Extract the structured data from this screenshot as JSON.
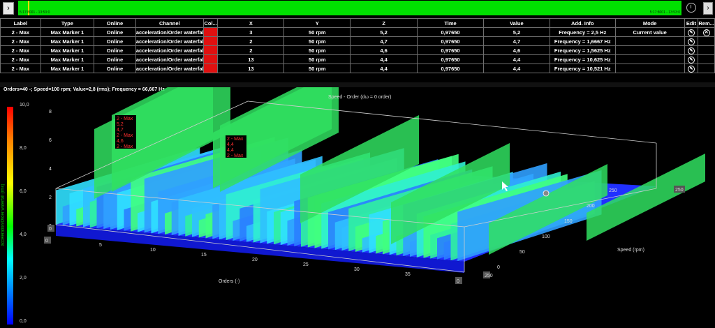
{
  "toolbar": {
    "play_glyph": "›",
    "clock_icon": "clock-icon",
    "right_glyph": "›",
    "timeline_start": "5:17:8001 - 13:53:0",
    "timeline_end": "5:17:8001 - 13:53:0"
  },
  "table": {
    "headers": [
      "Label",
      "Type",
      "Online",
      "Channel",
      "Col...",
      "X",
      "Y",
      "Z",
      "Time",
      "Value",
      "Add. Info",
      "Mode",
      "Edit",
      "Rem..."
    ],
    "rows": [
      {
        "label": "2 - Max",
        "type": "Max Marker 1",
        "online": "Online",
        "channel": "acceleration/Order waterfall",
        "x": "3",
        "y": "50 rpm",
        "z": "5,2",
        "time": "0,97650",
        "value": "5,2",
        "info": "Frequency = 2,5 Hz",
        "mode": "Current value"
      },
      {
        "label": "2 - Max",
        "type": "Max Marker 1",
        "online": "Online",
        "channel": "acceleration/Order waterfall",
        "x": "2",
        "y": "50 rpm",
        "z": "4,7",
        "time": "0,97650",
        "value": "4,7",
        "info": "Frequency = 1,6667 Hz",
        "mode": ""
      },
      {
        "label": "2 - Max",
        "type": "Max Marker 1",
        "online": "Online",
        "channel": "acceleration/Order waterfall",
        "x": "2",
        "y": "50 rpm",
        "z": "4,6",
        "time": "0,97650",
        "value": "4,6",
        "info": "Frequency = 1,5625 Hz",
        "mode": ""
      },
      {
        "label": "2 - Max",
        "type": "Max Marker 1",
        "online": "Online",
        "channel": "acceleration/Order waterfall",
        "x": "13",
        "y": "50 rpm",
        "z": "4,4",
        "time": "0,97650",
        "value": "4,4",
        "info": "Frequency = 10,625 Hz",
        "mode": ""
      },
      {
        "label": "2 - Max",
        "type": "Max Marker 1",
        "online": "Online",
        "channel": "acceleration/Order waterfall",
        "x": "13",
        "y": "50 rpm",
        "z": "4,4",
        "time": "0,97650",
        "value": "4,4",
        "info": "Frequency = 10,521 Hz",
        "mode": ""
      }
    ],
    "swatch_color": "#e01010"
  },
  "chart": {
    "status_text": "Orders=40 -; Speed=100 rpm; Value=2,8  (rms); Frequency = 66,667 Hz",
    "title": "Speed - Order (dω = 0 order)",
    "colorbar_title": "acceleration/Order waterfall (rms)",
    "colorbar_ticks": [
      "10,0",
      "8,0",
      "6,0",
      "4,0",
      "2,0",
      "0,0"
    ],
    "x_axis_label": "Orders (-)",
    "y_axis_label": "Speed (rpm)",
    "z_ticks": [
      "8",
      "6",
      "4",
      "2",
      "0"
    ],
    "x_ticks": [
      "5",
      "10",
      "15",
      "20",
      "25",
      "30",
      "35",
      "40"
    ],
    "y_ticks": [
      "0",
      "50",
      "100",
      "150",
      "200",
      "250"
    ],
    "box_values": [
      "0",
      "0",
      "0",
      "250"
    ],
    "marker_labels": [
      {
        "lines": [
          "2 - Max",
          "5,2",
          "4,7",
          "2 - Max",
          "4,6",
          "2 - Max"
        ]
      },
      {
        "lines": [
          "2 - Max",
          "4,4",
          "4,4",
          "2 - Max"
        ]
      }
    ]
  },
  "chart_data": {
    "type": "heatmap",
    "title": "Speed - Order (dω = 0 order)",
    "xlabel": "Orders (-)",
    "ylabel": "Speed (rpm)",
    "zlabel": "acceleration/Order waterfall (rms)",
    "xlim": [
      0,
      40
    ],
    "ylim": [
      0,
      250
    ],
    "zlim": [
      0,
      10
    ],
    "x_ticks": [
      5,
      10,
      15,
      20,
      25,
      30,
      35,
      40
    ],
    "y_ticks": [
      0,
      50,
      100,
      150,
      200,
      250
    ],
    "colorscale": [
      "#0000ff",
      "#00ffff",
      "#00ff00",
      "#ffff00",
      "#ff0000"
    ],
    "sample_peaks": [
      {
        "order": 3,
        "speed": 50,
        "value": 5.2
      },
      {
        "order": 2,
        "speed": 50,
        "value": 4.7
      },
      {
        "order": 2,
        "speed": 50,
        "value": 4.6
      },
      {
        "order": 13,
        "speed": 50,
        "value": 4.4
      },
      {
        "order": 13,
        "speed": 50,
        "value": 4.4
      }
    ]
  }
}
